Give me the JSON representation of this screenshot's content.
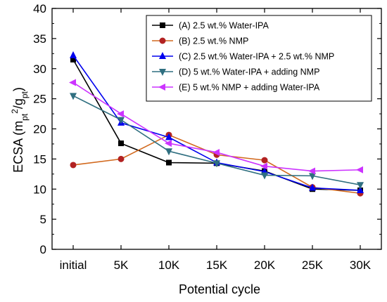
{
  "chart_data": {
    "type": "line",
    "categories": [
      "initial",
      "5K",
      "10K",
      "15K",
      "20K",
      "25K",
      "30K"
    ],
    "xlabel": "Potential cycle",
    "ylabel": {
      "main": "ECSA (m",
      "sub1": "pt",
      "sup": "2",
      "slash": "/g",
      "sub2": "pt",
      "close": ")"
    },
    "ylim": [
      0,
      40
    ],
    "yticks": [
      0,
      5,
      10,
      15,
      20,
      25,
      30,
      35,
      40
    ],
    "grid": false,
    "legend_position": "top-right",
    "series": [
      {
        "name": "(A) 2.5 wt.% Water-IPA",
        "color": "#000000",
        "marker": "square",
        "values": [
          31.5,
          17.6,
          14.4,
          14.3,
          13.0,
          10.0,
          9.8
        ]
      },
      {
        "name": "(B) 2.5 wt.% NMP",
        "color": "#b22222",
        "line_color": "#d2691e",
        "marker": "circle",
        "values": [
          14.0,
          15.0,
          19.0,
          15.7,
          14.8,
          10.3,
          9.3
        ]
      },
      {
        "name": "(C) 2.5 wt.% Water-IPA + 2.5 wt.% NMP",
        "color": "#0000ee",
        "marker": "triangle-up",
        "values": [
          32.2,
          21.0,
          18.6,
          14.4,
          12.9,
          10.2,
          9.8
        ]
      },
      {
        "name": "(D) 5 wt.% Water-IPA + adding NMP",
        "color": "#2f6f80",
        "marker": "triangle-down",
        "values": [
          25.5,
          21.5,
          16.3,
          14.3,
          12.3,
          12.2,
          10.7
        ]
      },
      {
        "name": "(E) 5 wt.% NMP + adding Water-IPA",
        "color": "#cc33ff",
        "marker": "triangle-left",
        "values": [
          27.7,
          22.5,
          17.6,
          16.1,
          13.8,
          13.0,
          13.2
        ]
      }
    ]
  }
}
